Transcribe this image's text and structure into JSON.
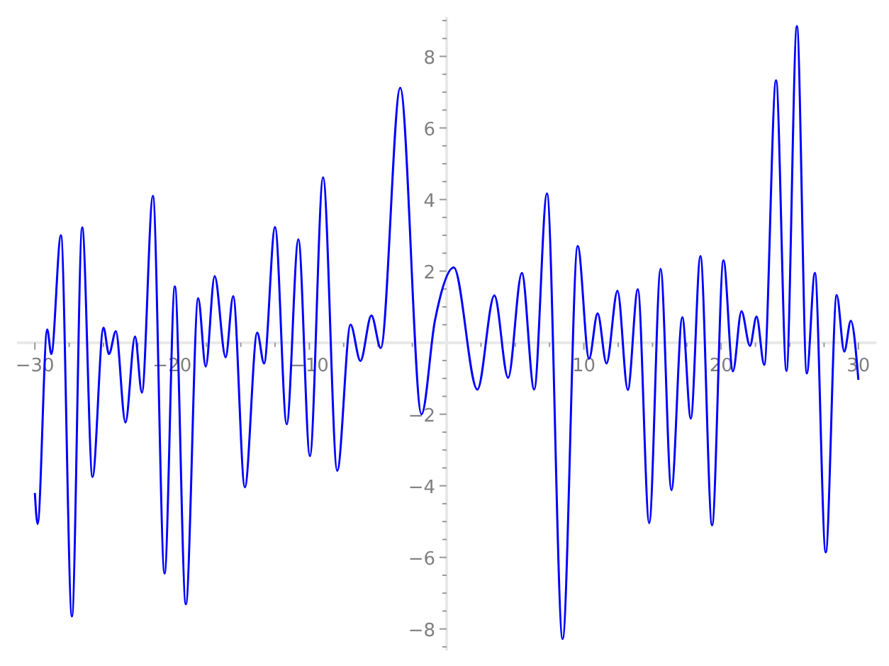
{
  "chart_data": {
    "type": "line",
    "marker": "none",
    "line_style": "solid",
    "xlim": [
      -31.3,
      31.3
    ],
    "ylim": [
      -8.6,
      9.1
    ],
    "xticks": [
      {
        "value": -30,
        "label": "−30"
      },
      {
        "value": -27.5,
        "label": null
      },
      {
        "value": -25,
        "label": null
      },
      {
        "value": -22.5,
        "label": null
      },
      {
        "value": -20,
        "label": "−20"
      },
      {
        "value": -17.5,
        "label": null
      },
      {
        "value": -15,
        "label": null
      },
      {
        "value": -12.5,
        "label": null
      },
      {
        "value": -10,
        "label": "−10"
      },
      {
        "value": -7.5,
        "label": null
      },
      {
        "value": -5,
        "label": null
      },
      {
        "value": -2.5,
        "label": null
      },
      {
        "value": 2.5,
        "label": null
      },
      {
        "value": 5,
        "label": null
      },
      {
        "value": 7.5,
        "label": null
      },
      10,
      {
        "value": 12.5,
        "label": null
      },
      {
        "value": 15,
        "label": null
      },
      {
        "value": 17.5,
        "label": null
      },
      20,
      {
        "value": 22.5,
        "label": null
      },
      {
        "value": 25,
        "label": null
      },
      {
        "value": 27.5,
        "label": null
      },
      30
    ],
    "yticks": [
      {
        "value": -8.5,
        "label": null
      },
      {
        "value": -8,
        "label": "−8"
      },
      {
        "value": -7.5,
        "label": null
      },
      {
        "value": -7,
        "label": null
      },
      {
        "value": -6.5,
        "label": null
      },
      {
        "value": -6,
        "label": "−6"
      },
      {
        "value": -5.5,
        "label": null
      },
      {
        "value": -5,
        "label": null
      },
      {
        "value": -4.5,
        "label": null
      },
      {
        "value": -4,
        "label": "−4"
      },
      {
        "value": -3.5,
        "label": null
      },
      {
        "value": -3,
        "label": null
      },
      {
        "value": -2.5,
        "label": null
      },
      {
        "value": -2,
        "label": "−2"
      },
      {
        "value": -1.5,
        "label": null
      },
      {
        "value": -1,
        "label": null
      },
      {
        "value": -0.5,
        "label": null
      },
      {
        "value": 0.5,
        "label": null
      },
      {
        "value": 1,
        "label": null
      },
      {
        "value": 1.5,
        "label": null
      },
      2,
      {
        "value": 2.5,
        "label": null
      },
      {
        "value": 3,
        "label": null
      },
      {
        "value": 3.5,
        "label": null
      },
      4,
      {
        "value": 4.5,
        "label": null
      },
      {
        "value": 5,
        "label": null
      },
      {
        "value": 5.5,
        "label": null
      },
      6,
      {
        "value": 6.5,
        "label": null
      },
      {
        "value": 7,
        "label": null
      },
      {
        "value": 7.5,
        "label": null
      },
      8,
      {
        "value": 8.5,
        "label": null
      },
      {
        "value": 9,
        "label": null
      }
    ],
    "series": [
      {
        "color": "#0000ff",
        "x": [
          -30,
          -29.8,
          -29.1,
          -28.8,
          -28.1,
          -27.3,
          -26.55,
          -25.8,
          -25.0,
          -24.6,
          -24.1,
          -23.4,
          -22.7,
          -22.2,
          -21.4,
          -20.55,
          -19.8,
          -19.0,
          -18.1,
          -17.55,
          -16.9,
          -16.1,
          -15.55,
          -14.7,
          -13.8,
          -13.3,
          -12.5,
          -11.65,
          -10.8,
          -9.96,
          -9.0,
          -7.97,
          -7.0,
          -6.28,
          -5.48,
          -4.8,
          -3.38,
          -1.83,
          -0.86,
          -0.52,
          0.52,
          2.24,
          3.48,
          4.48,
          5.48,
          6.38,
          7.31,
          8.45,
          9.55,
          10.38,
          11.0,
          11.65,
          12.45,
          13.2,
          13.93,
          14.76,
          15.59,
          16.38,
          17.17,
          17.79,
          18.49,
          19.34,
          20.17,
          20.86,
          21.48,
          22.1,
          22.58,
          23.14,
          24.0,
          24.76,
          25.52,
          26.24,
          26.83,
          27.62,
          28.42,
          28.97,
          29.45,
          30
        ],
        "values": [
          -4.2,
          -5.07,
          0.37,
          -0.32,
          3.0,
          -7.65,
          3.22,
          -3.75,
          0.42,
          -0.32,
          0.32,
          -2.23,
          0.17,
          -1.4,
          4.1,
          -6.45,
          1.57,
          -7.31,
          1.24,
          -0.67,
          1.86,
          -0.41,
          1.3,
          -4.04,
          0.28,
          -0.58,
          3.23,
          -2.28,
          2.89,
          -3.17,
          4.62,
          -3.58,
          0.5,
          -0.51,
          0.76,
          -0.15,
          7.12,
          -2.0,
          0.6,
          1.2,
          2.1,
          -1.31,
          1.32,
          -0.98,
          1.95,
          -1.31,
          4.17,
          -8.28,
          2.7,
          -0.45,
          0.82,
          -0.58,
          1.45,
          -1.32,
          1.49,
          -5.04,
          2.06,
          -4.12,
          0.71,
          -2.12,
          2.42,
          -5.1,
          2.3,
          -0.8,
          0.88,
          -0.09,
          0.73,
          -0.62,
          7.33,
          -0.79,
          8.85,
          -0.86,
          1.95,
          -5.86,
          1.33,
          -0.25,
          0.61,
          -1.04
        ]
      }
    ]
  }
}
